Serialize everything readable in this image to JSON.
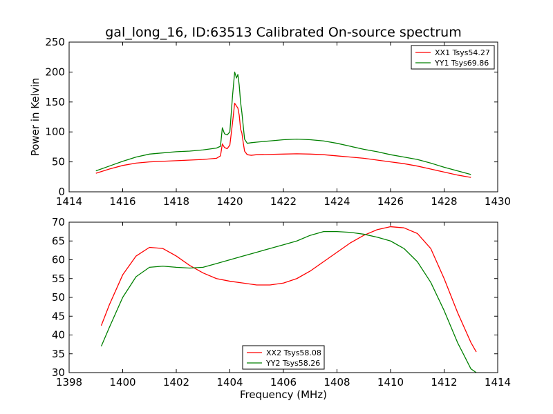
{
  "title": "gal_long_16, ID:63513 Calibrated On-source spectrum",
  "chart_data": [
    {
      "type": "line",
      "ylabel": "Power in Kelvin",
      "xlabel": "",
      "xlim": [
        1414,
        1430
      ],
      "ylim": [
        0,
        250
      ],
      "xticks": [
        1414,
        1416,
        1418,
        1420,
        1422,
        1424,
        1426,
        1428,
        1430
      ],
      "yticks": [
        0,
        50,
        100,
        150,
        200,
        250
      ],
      "legend_position": "top-right",
      "series": [
        {
          "name": "XX1 Tsys54.27",
          "color": "#ff0000",
          "x": [
            1415.0,
            1415.5,
            1416.0,
            1416.5,
            1417.0,
            1417.5,
            1418.0,
            1418.5,
            1419.0,
            1419.5,
            1419.65,
            1419.72,
            1419.8,
            1419.9,
            1420.0,
            1420.1,
            1420.18,
            1420.25,
            1420.3,
            1420.35,
            1420.4,
            1420.45,
            1420.5,
            1420.55,
            1420.65,
            1420.8,
            1421.0,
            1421.5,
            1422.0,
            1422.5,
            1423.0,
            1423.5,
            1424.0,
            1424.5,
            1425.0,
            1425.5,
            1426.0,
            1426.5,
            1427.0,
            1427.5,
            1428.0,
            1428.5,
            1429.0
          ],
          "y": [
            31,
            38,
            44,
            48,
            50,
            51,
            52,
            53,
            54,
            56,
            60,
            80,
            74,
            72,
            78,
            115,
            148,
            143,
            140,
            128,
            105,
            98,
            82,
            68,
            62,
            61,
            62,
            62.5,
            63,
            63.5,
            63,
            62,
            60,
            58,
            56,
            53,
            50,
            47,
            43,
            38,
            33,
            28,
            24
          ]
        },
        {
          "name": "YY1 Tsys69.86",
          "color": "#008000",
          "x": [
            1415.0,
            1415.5,
            1416.0,
            1416.5,
            1417.0,
            1417.5,
            1418.0,
            1418.5,
            1419.0,
            1419.5,
            1419.65,
            1419.72,
            1419.8,
            1419.9,
            1420.0,
            1420.1,
            1420.18,
            1420.25,
            1420.3,
            1420.35,
            1420.4,
            1420.45,
            1420.5,
            1420.55,
            1420.65,
            1420.8,
            1421.0,
            1421.5,
            1422.0,
            1422.5,
            1423.0,
            1423.5,
            1424.0,
            1424.5,
            1425.0,
            1425.5,
            1426.0,
            1426.5,
            1427.0,
            1427.5,
            1428.0,
            1428.5,
            1429.0
          ],
          "y": [
            35,
            43,
            51,
            58,
            63,
            65,
            67,
            68,
            70,
            73,
            76,
            107,
            97,
            95,
            100,
            160,
            200,
            190,
            196,
            178,
            150,
            132,
            110,
            88,
            81,
            82,
            83,
            85,
            87,
            88,
            87,
            85,
            81,
            76,
            71,
            67,
            62,
            58,
            54,
            48,
            41,
            35,
            29
          ]
        }
      ]
    },
    {
      "type": "line",
      "ylabel": "",
      "xlabel": "Frequency (MHz)",
      "xlim": [
        1398,
        1414
      ],
      "ylim": [
        30,
        70
      ],
      "xticks": [
        1398,
        1400,
        1402,
        1404,
        1406,
        1408,
        1410,
        1412,
        1414
      ],
      "yticks": [
        30,
        35,
        40,
        45,
        50,
        55,
        60,
        65,
        70
      ],
      "legend_position": "bottom-center",
      "series": [
        {
          "name": "XX2 Tsys58.08",
          "color": "#ff0000",
          "x": [
            1399.2,
            1399.5,
            1400.0,
            1400.5,
            1401.0,
            1401.5,
            1402.0,
            1402.5,
            1403.0,
            1403.5,
            1404.0,
            1404.5,
            1405.0,
            1405.5,
            1406.0,
            1406.5,
            1407.0,
            1407.5,
            1408.0,
            1408.5,
            1409.0,
            1409.5,
            1410.0,
            1410.5,
            1411.0,
            1411.5,
            1412.0,
            1412.5,
            1413.0,
            1413.2
          ],
          "y": [
            42.5,
            48,
            56,
            61,
            63.3,
            63,
            61,
            58.5,
            56.5,
            55,
            54.3,
            53.8,
            53.3,
            53.3,
            53.8,
            55,
            57,
            59.5,
            62,
            64.5,
            66.5,
            68,
            68.8,
            68.5,
            67,
            63,
            55,
            46,
            38,
            35.5
          ]
        },
        {
          "name": "YY2 Tsys58.26",
          "color": "#008000",
          "x": [
            1399.2,
            1399.5,
            1400.0,
            1400.5,
            1401.0,
            1401.5,
            1402.0,
            1402.5,
            1403.0,
            1403.5,
            1404.0,
            1404.5,
            1405.0,
            1405.5,
            1406.0,
            1406.5,
            1407.0,
            1407.5,
            1408.0,
            1408.5,
            1409.0,
            1409.5,
            1410.0,
            1410.5,
            1411.0,
            1411.5,
            1412.0,
            1412.5,
            1413.0,
            1413.2
          ],
          "y": [
            37,
            42,
            50,
            55.5,
            58,
            58.3,
            58,
            57.8,
            58,
            59,
            60,
            61,
            62,
            63,
            64,
            65,
            66.5,
            67.5,
            67.5,
            67.3,
            66.8,
            66,
            65,
            63,
            59.5,
            54,
            46.5,
            38,
            31,
            30
          ]
        }
      ]
    }
  ]
}
